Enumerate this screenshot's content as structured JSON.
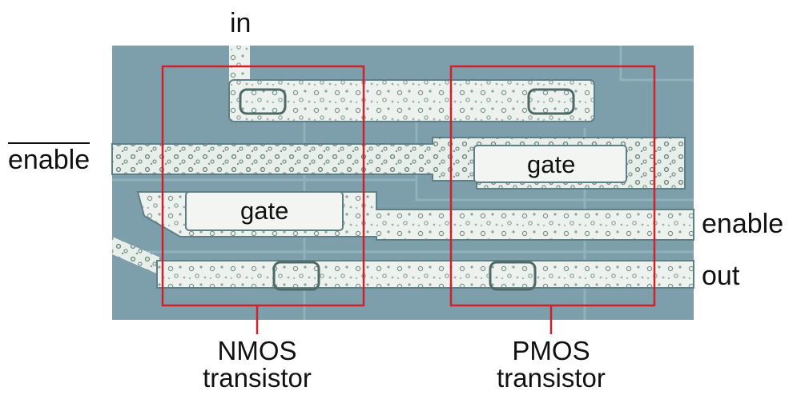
{
  "labels": {
    "in": "in",
    "enable_bar": "enable",
    "enable": "enable",
    "out": "out",
    "gate_nmos": "gate",
    "gate_pmos": "gate"
  },
  "captions": {
    "nmos_line1": "NMOS",
    "nmos_line2": "transistor",
    "pmos_line1": "PMOS",
    "pmos_line2": "transistor"
  },
  "colors": {
    "substrate": "#7c9fab",
    "metal": "#eef2ee",
    "highlight_box": "#d0202a"
  }
}
